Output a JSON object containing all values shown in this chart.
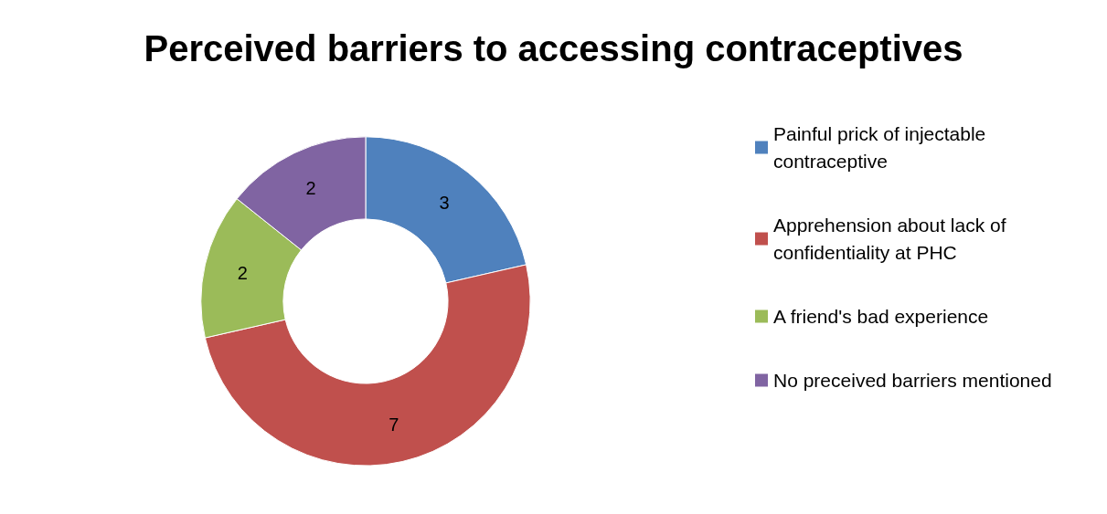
{
  "chart_data": {
    "type": "donut",
    "title": "Perceived barriers to accessing contraceptives",
    "categories": [
      "Painful prick of injectable contraceptive",
      "Apprehension about lack of confidentiality at PHC",
      "A friend's bad experience",
      "No preceived barriers mentioned"
    ],
    "values": [
      3,
      7,
      2,
      2
    ],
    "colors": [
      "#4f81bd",
      "#c0504d",
      "#9bbb59",
      "#8064a2"
    ],
    "data_labels": true,
    "legend": "right"
  }
}
